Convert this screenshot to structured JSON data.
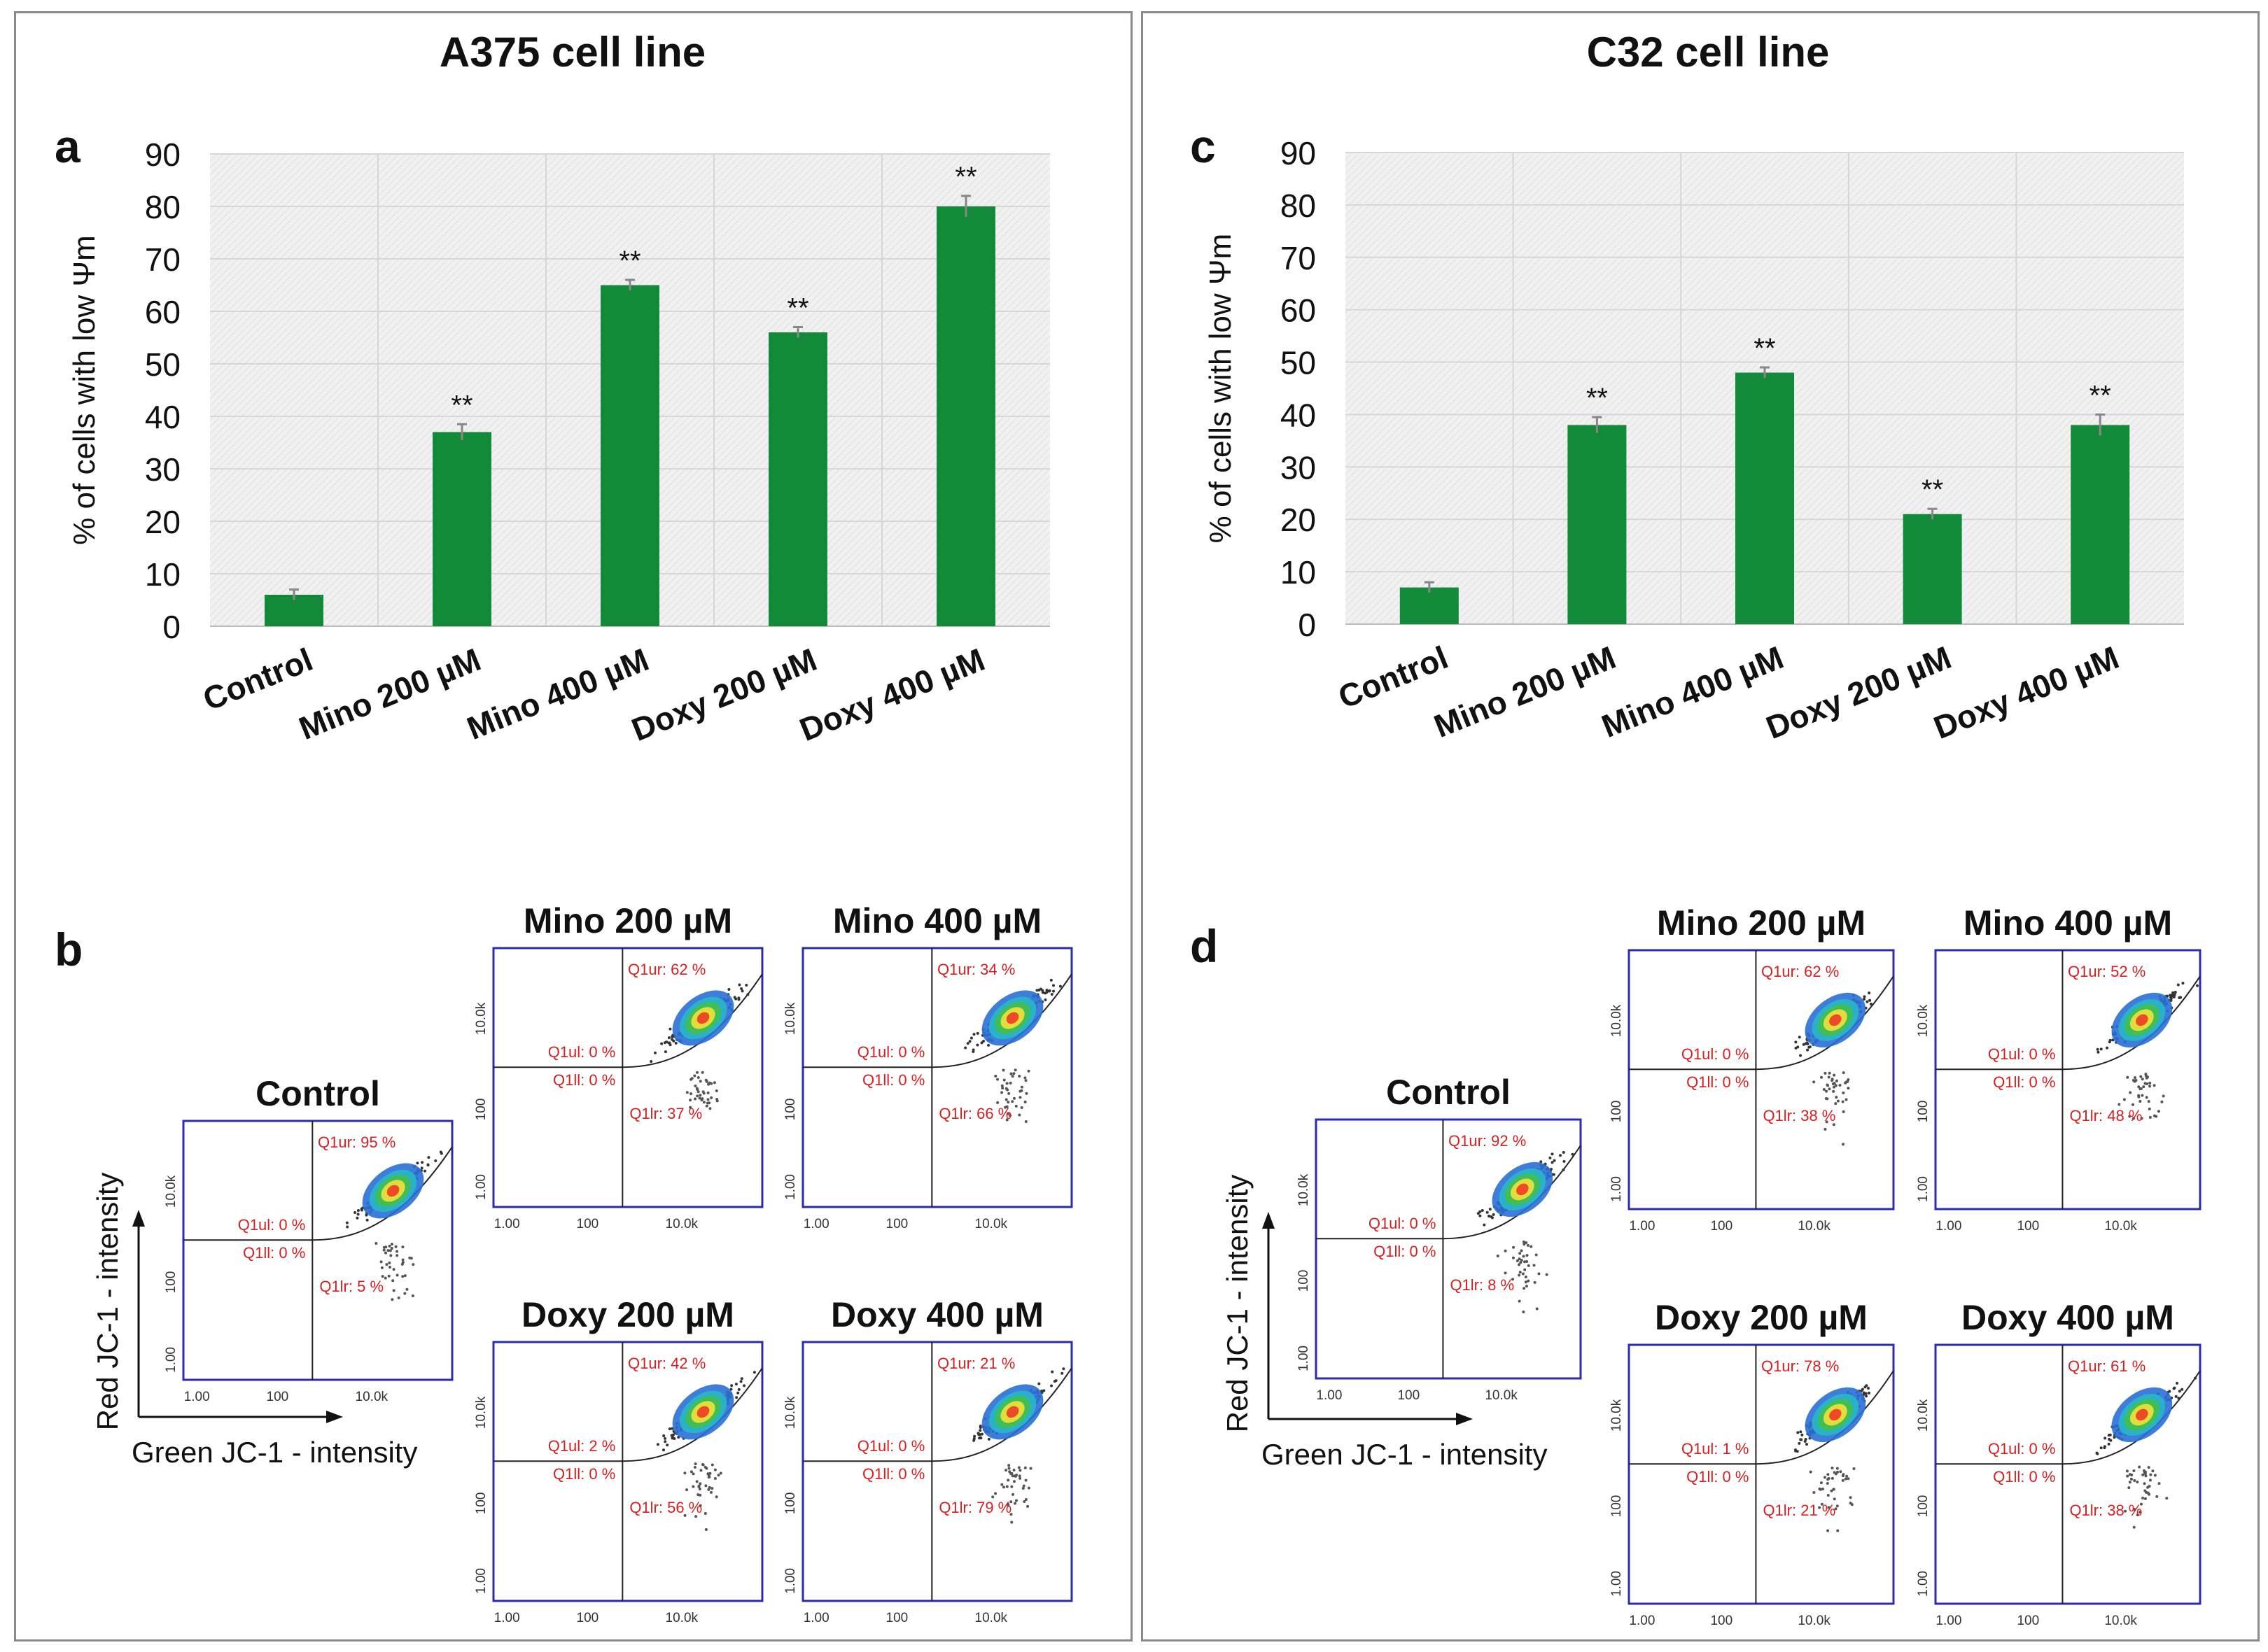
{
  "panels": [
    {
      "title": "A375 cell line",
      "bar_letter": "a",
      "flow_letter": "b",
      "flow_plots": [
        {
          "title": "Control",
          "ur": "Q1ur: 95 %",
          "ul": "Q1ul: 0 %",
          "ll": "Q1ll: 0 %",
          "lr": "Q1lr: 5 %"
        },
        {
          "title": "Mino 200 µM",
          "ur": "Q1ur: 62 %",
          "ul": "Q1ul: 0 %",
          "ll": "Q1ll: 0 %",
          "lr": "Q1lr: 37 %"
        },
        {
          "title": "Mino 400 µM",
          "ur": "Q1ur: 34 %",
          "ul": "Q1ul: 0 %",
          "ll": "Q1ll: 0 %",
          "lr": "Q1lr: 66 %"
        },
        {
          "title": "Doxy 200 µM",
          "ur": "Q1ur: 42 %",
          "ul": "Q1ul: 2 %",
          "ll": "Q1ll: 0 %",
          "lr": "Q1lr: 56 %"
        },
        {
          "title": "Doxy 400 µM",
          "ur": "Q1ur: 21 %",
          "ul": "Q1ul: 0 %",
          "ll": "Q1ll: 0 %",
          "lr": "Q1lr: 79 %"
        }
      ]
    },
    {
      "title": "C32 cell line",
      "bar_letter": "c",
      "flow_letter": "d",
      "flow_plots": [
        {
          "title": "Control",
          "ur": "Q1ur: 92 %",
          "ul": "Q1ul: 0 %",
          "ll": "Q1ll: 0 %",
          "lr": "Q1lr: 8 %"
        },
        {
          "title": "Mino 200 µM",
          "ur": "Q1ur: 62 %",
          "ul": "Q1ul: 0 %",
          "ll": "Q1ll: 0 %",
          "lr": "Q1lr: 38 %"
        },
        {
          "title": "Mino 400 µM",
          "ur": "Q1ur: 52 %",
          "ul": "Q1ul: 0 %",
          "ll": "Q1ll: 0 %",
          "lr": "Q1lr: 48 %"
        },
        {
          "title": "Doxy 200 µM",
          "ur": "Q1ur: 78 %",
          "ul": "Q1ul: 1 %",
          "ll": "Q1ll: 0 %",
          "lr": "Q1lr: 21 %"
        },
        {
          "title": "Doxy 400 µM",
          "ur": "Q1ur: 61 %",
          "ul": "Q1ul: 0 %",
          "ll": "Q1ll: 0 %",
          "lr": "Q1lr: 38 %"
        }
      ]
    }
  ],
  "flow_axes": {
    "x_label": "Green JC-1 - intensity",
    "y_label": "Red JC-1 - intensity",
    "x_ticks": [
      "1.00",
      "100",
      "10.0k"
    ],
    "y_ticks": [
      "1.00",
      "100",
      "10.0k"
    ]
  },
  "colors": {
    "bar": "#138a3a",
    "panel_border": "#8a8a8a",
    "quadrant_text": "#d62020",
    "flow_frame": "#2b2bb0"
  },
  "chart_data": [
    {
      "type": "bar",
      "title": "A375 cell line",
      "categories": [
        "Control",
        "Mino 200 µM",
        "Mino 400 µM",
        "Doxy 200 µM",
        "Doxy 400 µM"
      ],
      "values": [
        6,
        37,
        65,
        56,
        80
      ],
      "errors": [
        1,
        1.5,
        1,
        1,
        2
      ],
      "significance": [
        "",
        "**",
        "**",
        "**",
        "**"
      ],
      "xlabel": "",
      "ylabel": "% of cells with low Ψm",
      "ylim": [
        0,
        90
      ],
      "yticks": [
        0,
        10,
        20,
        30,
        40,
        50,
        60,
        70,
        80,
        90
      ],
      "grid": true
    },
    {
      "type": "bar",
      "title": "C32 cell line",
      "categories": [
        "Control",
        "Mino 200 µM",
        "Mino 400 µM",
        "Doxy 200 µM",
        "Doxy 400 µM"
      ],
      "values": [
        7,
        38,
        48,
        21,
        38
      ],
      "errors": [
        1,
        1.5,
        1,
        1,
        2
      ],
      "significance": [
        "",
        "**",
        "**",
        "**",
        "**"
      ],
      "xlabel": "",
      "ylabel": "% of cells with low Ψm",
      "ylim": [
        0,
        90
      ],
      "yticks": [
        0,
        10,
        20,
        30,
        40,
        50,
        60,
        70,
        80,
        90
      ],
      "grid": true
    }
  ]
}
